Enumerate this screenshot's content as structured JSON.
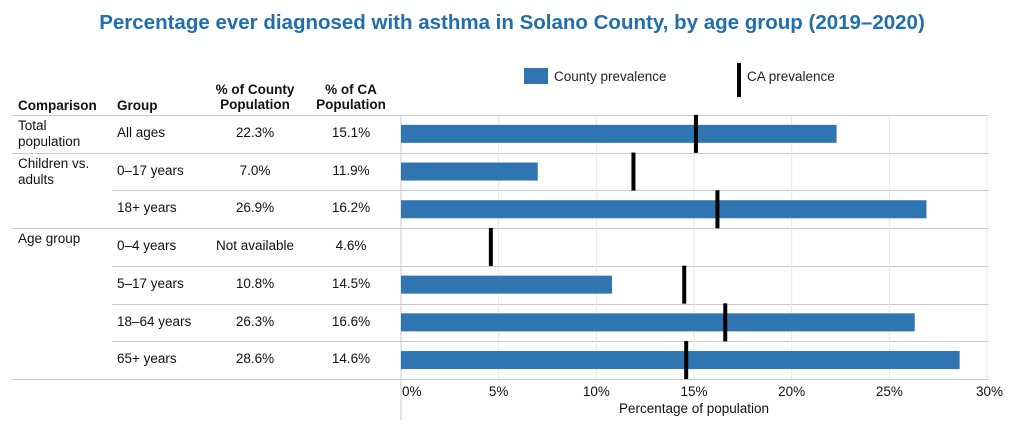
{
  "title": "Percentage ever diagnosed with asthma in Solano County, by age group (2019–2020)",
  "headers": {
    "comparison": "Comparison",
    "group": "Group",
    "county_pct": "% of County Population",
    "ca_pct": "% of CA Population"
  },
  "legend": {
    "county": "County prevalence",
    "ca": "CA prevalence"
  },
  "rows": [
    {
      "comparison": "Total population",
      "group": "All ages",
      "county_display": "22.3%",
      "ca_display": "15.1%"
    },
    {
      "comparison": "Children vs. adults",
      "group": "0–17 years",
      "county_display": "7.0%",
      "ca_display": "11.9%"
    },
    {
      "comparison": "",
      "group": "18+ years",
      "county_display": "26.9%",
      "ca_display": "16.2%"
    },
    {
      "comparison": "Age group",
      "group": "0–4 years",
      "county_display": "Not available",
      "ca_display": "4.6%"
    },
    {
      "comparison": "",
      "group": "5–17 years",
      "county_display": "10.8%",
      "ca_display": "14.5%"
    },
    {
      "comparison": "",
      "group": "18–64 years",
      "county_display": "26.3%",
      "ca_display": "16.6%"
    },
    {
      "comparison": "",
      "group": "65+ years",
      "county_display": "28.6%",
      "ca_display": "14.6%"
    }
  ],
  "chart_data": {
    "type": "bar",
    "orientation": "horizontal",
    "categories": [
      "All ages",
      "0–17 years",
      "18+ years",
      "0–4 years",
      "5–17 years",
      "18–64 years",
      "65+ years"
    ],
    "series": [
      {
        "name": "County prevalence",
        "values": [
          22.3,
          7.0,
          26.9,
          null,
          10.8,
          26.3,
          28.6
        ],
        "color": "#2e75b2"
      },
      {
        "name": "CA prevalence",
        "marker": "tick",
        "values": [
          15.1,
          11.9,
          16.2,
          4.6,
          14.5,
          16.6,
          14.6
        ],
        "color": "#000000"
      }
    ],
    "xlim": [
      0,
      30
    ],
    "xticks": [
      0,
      5,
      10,
      15,
      20,
      25,
      30
    ],
    "xtick_labels": [
      "0%",
      "5%",
      "10%",
      "15%",
      "20%",
      "25%",
      "30%"
    ],
    "xlabel": "Percentage of population",
    "grid": true,
    "legend_position": "top"
  }
}
